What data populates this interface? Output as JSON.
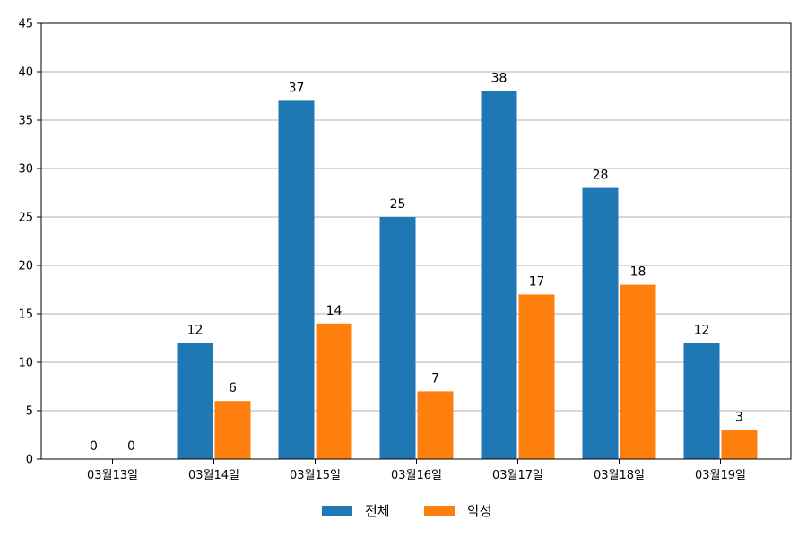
{
  "chart_data": {
    "type": "bar",
    "categories": [
      "03월13일",
      "03월14일",
      "03월15일",
      "03월16일",
      "03월17일",
      "03월18일",
      "03월19일"
    ],
    "series": [
      {
        "name": "전체",
        "color": "#1f77b4",
        "values": [
          0,
          12,
          37,
          25,
          38,
          28,
          12
        ]
      },
      {
        "name": "악성",
        "color": "#ff7f0e",
        "values": [
          0,
          6,
          14,
          7,
          17,
          18,
          3
        ]
      }
    ],
    "ylim": [
      0,
      45
    ],
    "yticks": [
      0,
      5,
      10,
      15,
      20,
      25,
      30,
      35,
      40,
      45
    ],
    "grid": true,
    "data_labels": true,
    "legend_position": "bottom-center",
    "title": "",
    "xlabel": "",
    "ylabel": ""
  }
}
